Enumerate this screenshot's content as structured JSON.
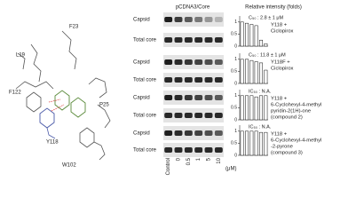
{
  "structure": {
    "residues": [
      "L19",
      "F23",
      "F122",
      "Y118",
      "P25",
      "W102"
    ]
  },
  "blots": {
    "title": "pCDNA3/Core",
    "rows": [
      "Capsid",
      "Total core",
      "Capsid",
      "Total core",
      "Capsid",
      "Total core",
      "Capsid",
      "Total core"
    ],
    "categories": [
      "Control",
      "0",
      "0.5",
      "1",
      "5",
      "10"
    ],
    "unit": "(μM)"
  },
  "charts_header": "Relative intensity (folds)",
  "chart_data": [
    {
      "type": "bar",
      "annotation": "C₅₀ : 2.8 ± 1 μM",
      "label": [
        "Y118 +",
        "Ciclopirox"
      ],
      "values": [
        1,
        0.95,
        0.9,
        0.85,
        0.25,
        0.1
      ],
      "ylim": [
        0,
        1.25
      ],
      "yticks": [
        0,
        0.5,
        1
      ],
      "color": "#ffffff"
    },
    {
      "type": "bar",
      "annotation": "C₅₀ : 11.8 ± 1 μM",
      "label": [
        "Y118F +",
        "Ciclopirox"
      ],
      "values": [
        1,
        1,
        0.95,
        0.9,
        0.85,
        0.55
      ],
      "ylim": [
        0,
        1.25
      ],
      "yticks": [
        0,
        0.5,
        1
      ],
      "color": "#ffffff"
    },
    {
      "type": "bar",
      "annotation": "IC₅₀ : N.A.",
      "label": [
        "Y118 +",
        "6-Cyclohexyl-4-methyl",
        "pyridin-2(1H)-one",
        "(compound 2)"
      ],
      "values": [
        1,
        1,
        1,
        0.95,
        1,
        1
      ],
      "ylim": [
        0,
        1.25
      ],
      "yticks": [
        0,
        0.5,
        1
      ],
      "color": "#ffffff"
    },
    {
      "type": "bar",
      "annotation": "IC₅₀ : N.A.",
      "label": [
        "Y118 +",
        "6-Cyclohexyl-4-methyl",
        "-2-pyrone",
        "(compound 3)"
      ],
      "values": [
        1,
        1,
        1,
        1,
        0.95,
        0.95
      ],
      "ylim": [
        0,
        1.25
      ],
      "yticks": [
        0,
        0.5,
        1
      ],
      "color": "#ffffff"
    }
  ]
}
